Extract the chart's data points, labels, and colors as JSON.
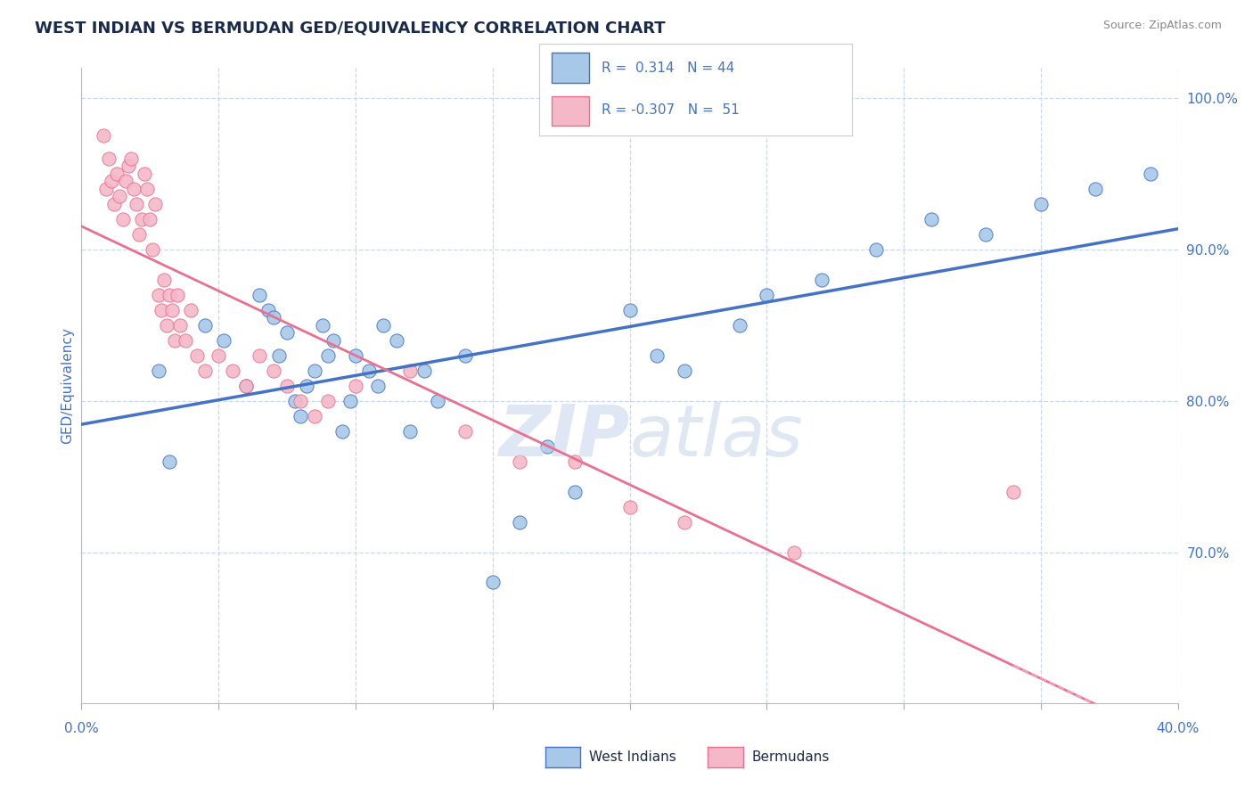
{
  "title": "WEST INDIAN VS BERMUDAN GED/EQUIVALENCY CORRELATION CHART",
  "source": "Source: ZipAtlas.com",
  "ylabel": "GED/Equivalency",
  "legend_bottom_blue": "West Indians",
  "legend_bottom_pink": "Bermudans",
  "blue_color": "#a8c8e8",
  "pink_color": "#f5b8c8",
  "blue_line_color": "#4472c4",
  "pink_line_color": "#e87090",
  "pink_dash_color": "#f0a0b8",
  "axis_color": "#4472c4",
  "grid_color": "#c8d8ec",
  "background_color": "#ffffff",
  "west_indians_x": [
    0.028,
    0.032,
    0.045,
    0.052,
    0.06,
    0.065,
    0.068,
    0.07,
    0.072,
    0.075,
    0.078,
    0.08,
    0.082,
    0.085,
    0.088,
    0.09,
    0.092,
    0.095,
    0.098,
    0.1,
    0.105,
    0.108,
    0.11,
    0.115,
    0.12,
    0.125,
    0.13,
    0.14,
    0.15,
    0.16,
    0.17,
    0.18,
    0.2,
    0.21,
    0.22,
    0.24,
    0.25,
    0.27,
    0.29,
    0.31,
    0.33,
    0.35,
    0.37,
    0.39
  ],
  "west_indians_y": [
    0.82,
    0.76,
    0.85,
    0.84,
    0.81,
    0.87,
    0.86,
    0.855,
    0.83,
    0.845,
    0.8,
    0.79,
    0.81,
    0.82,
    0.85,
    0.83,
    0.84,
    0.78,
    0.8,
    0.83,
    0.82,
    0.81,
    0.85,
    0.84,
    0.78,
    0.82,
    0.8,
    0.83,
    0.68,
    0.72,
    0.77,
    0.74,
    0.86,
    0.83,
    0.82,
    0.85,
    0.87,
    0.88,
    0.9,
    0.92,
    0.91,
    0.93,
    0.94,
    0.95
  ],
  "bermudans_x": [
    0.008,
    0.009,
    0.01,
    0.011,
    0.012,
    0.013,
    0.014,
    0.015,
    0.016,
    0.017,
    0.018,
    0.019,
    0.02,
    0.021,
    0.022,
    0.023,
    0.024,
    0.025,
    0.026,
    0.027,
    0.028,
    0.029,
    0.03,
    0.031,
    0.032,
    0.033,
    0.034,
    0.035,
    0.036,
    0.038,
    0.04,
    0.042,
    0.045,
    0.05,
    0.055,
    0.06,
    0.065,
    0.07,
    0.075,
    0.08,
    0.085,
    0.09,
    0.1,
    0.12,
    0.14,
    0.16,
    0.18,
    0.2,
    0.22,
    0.26,
    0.34
  ],
  "bermudans_y": [
    0.975,
    0.94,
    0.96,
    0.945,
    0.93,
    0.95,
    0.935,
    0.92,
    0.945,
    0.955,
    0.96,
    0.94,
    0.93,
    0.91,
    0.92,
    0.95,
    0.94,
    0.92,
    0.9,
    0.93,
    0.87,
    0.86,
    0.88,
    0.85,
    0.87,
    0.86,
    0.84,
    0.87,
    0.85,
    0.84,
    0.86,
    0.83,
    0.82,
    0.83,
    0.82,
    0.81,
    0.83,
    0.82,
    0.81,
    0.8,
    0.79,
    0.8,
    0.81,
    0.82,
    0.78,
    0.76,
    0.76,
    0.73,
    0.72,
    0.7,
    0.74
  ],
  "xmin": 0.0,
  "xmax": 0.4,
  "ymin": 0.6,
  "ymax": 1.02,
  "right_yticks": [
    0.7,
    0.8,
    0.9,
    1.0
  ],
  "right_ylabels": [
    "70.0%",
    "80.0%",
    "90.0%",
    "100.0%"
  ]
}
